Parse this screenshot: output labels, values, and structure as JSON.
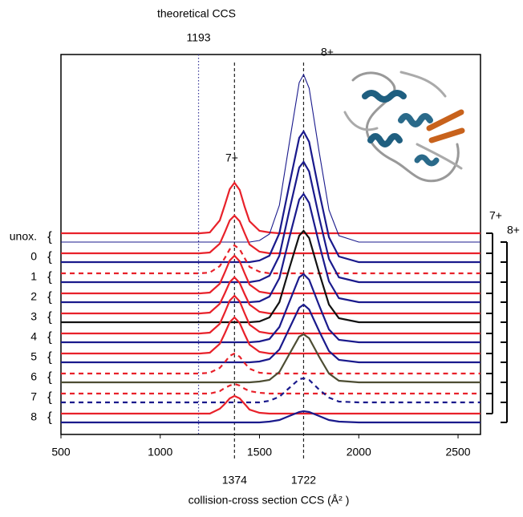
{
  "chart_data": {
    "type": "ridgeline",
    "theoretical_label": "theoretical CCS",
    "x_label": "collision-cross section CCS (Å² )",
    "peak_labels": [
      "7+",
      "8+"
    ],
    "bracket_labels": [
      "7+",
      "8+"
    ],
    "xlim": [
      500,
      2613
    ],
    "xticks": [
      500,
      1000,
      1500,
      2000,
      2500
    ],
    "reference_lines": [
      {
        "value": 1193,
        "label": "1193",
        "color": "#3a3a9a",
        "style": "dotted"
      },
      {
        "value": 1374,
        "label": "1374",
        "color": "#222222",
        "style": "dashed"
      },
      {
        "value": 1722,
        "label": "1722",
        "color": "#222222",
        "style": "dashed"
      }
    ],
    "x": [
      500,
      1200,
      1250,
      1300,
      1325,
      1350,
      1374,
      1400,
      1425,
      1450,
      1500,
      1550,
      1600,
      1650,
      1700,
      1722,
      1750,
      1800,
      1850,
      1900,
      2000,
      2613
    ],
    "rows": [
      {
        "label": "unox.",
        "series": [
          {
            "color": "#e8212a",
            "dashed": false,
            "width": 2,
            "values": [
              0,
              0,
              0.01,
              0.16,
              0.35,
              0.55,
              0.63,
              0.54,
              0.33,
              0.15,
              0.03,
              0.01,
              0,
              0,
              0,
              0,
              0,
              0,
              0,
              0,
              0,
              0
            ]
          },
          {
            "color": "#1a1a8c",
            "dashed": false,
            "width": 1,
            "values": [
              0,
              0,
              0,
              0,
              0,
              0,
              0,
              0,
              0,
              0,
              0.02,
              0.1,
              0.46,
              1.23,
              1.99,
              2.09,
              1.92,
              1.13,
              0.4,
              0.08,
              0,
              0
            ]
          }
        ]
      },
      {
        "label": "0",
        "series": [
          {
            "color": "#e8212a",
            "dashed": false,
            "width": 2,
            "values": [
              0,
              0,
              0.01,
              0.12,
              0.26,
              0.41,
              0.47,
              0.4,
              0.25,
              0.11,
              0.02,
              0,
              0,
              0,
              0,
              0,
              0,
              0,
              0,
              0,
              0,
              0
            ]
          },
          {
            "color": "#1a1a8c",
            "dashed": false,
            "width": 2,
            "values": [
              0,
              0,
              0,
              0,
              0,
              0,
              0,
              0,
              0,
              0,
              0.02,
              0.08,
              0.36,
              0.96,
              1.55,
              1.63,
              1.5,
              0.88,
              0.31,
              0.07,
              0,
              0
            ]
          }
        ]
      },
      {
        "label": "1",
        "series": [
          {
            "color": "#e8212a",
            "dashed": true,
            "width": 2,
            "values": [
              0,
              0,
              0.01,
              0.09,
              0.19,
              0.3,
              0.35,
              0.3,
              0.19,
              0.08,
              0.02,
              0,
              0,
              0,
              0,
              0,
              0,
              0,
              0,
              0,
              0,
              0
            ]
          },
          {
            "color": "#1a1a8c",
            "dashed": false,
            "width": 2,
            "values": [
              0,
              0,
              0,
              0,
              0,
              0,
              0,
              0,
              0,
              0,
              0.02,
              0.08,
              0.33,
              0.89,
              1.43,
              1.5,
              1.38,
              0.81,
              0.29,
              0.06,
              0,
              0
            ]
          }
        ]
      },
      {
        "label": "2",
        "series": [
          {
            "color": "#e8212a",
            "dashed": false,
            "width": 2,
            "values": [
              0,
              0,
              0.01,
              0.12,
              0.26,
              0.41,
              0.47,
              0.4,
              0.25,
              0.11,
              0.02,
              0,
              0,
              0,
              0,
              0,
              0,
              0,
              0,
              0,
              0,
              0
            ]
          },
          {
            "color": "#1a1a8c",
            "dashed": false,
            "width": 2,
            "values": [
              0,
              0,
              0,
              0,
              0,
              0,
              0,
              0,
              0,
              0,
              0.01,
              0.07,
              0.3,
              0.8,
              1.28,
              1.35,
              1.24,
              0.73,
              0.26,
              0.05,
              0,
              0
            ]
          }
        ]
      },
      {
        "label": "3",
        "series": [
          {
            "color": "#e8212a",
            "dashed": false,
            "width": 2,
            "values": [
              0,
              0,
              0.01,
              0.12,
              0.25,
              0.39,
              0.45,
              0.38,
              0.24,
              0.11,
              0.02,
              0,
              0,
              0,
              0,
              0,
              0,
              0,
              0,
              0,
              0,
              0
            ]
          },
          {
            "color": "#111111",
            "dashed": false,
            "width": 2,
            "values": [
              0,
              0,
              0,
              0,
              0,
              0,
              0,
              0,
              0,
              0,
              0.01,
              0.06,
              0.25,
              0.67,
              1.08,
              1.14,
              1.05,
              0.62,
              0.22,
              0.05,
              0,
              0
            ]
          }
        ]
      },
      {
        "label": "4",
        "series": [
          {
            "color": "#e8212a",
            "dashed": false,
            "width": 2,
            "values": [
              0,
              0,
              0.01,
              0.12,
              0.26,
              0.41,
              0.47,
              0.4,
              0.25,
              0.11,
              0.02,
              0,
              0,
              0,
              0,
              0,
              0,
              0,
              0,
              0,
              0,
              0
            ]
          },
          {
            "color": "#1a1a8c",
            "dashed": false,
            "width": 2,
            "values": [
              0,
              0,
              0,
              0,
              0,
              0,
              0,
              0,
              0,
              0,
              0.01,
              0.04,
              0.19,
              0.5,
              0.81,
              0.85,
              0.78,
              0.46,
              0.16,
              0.03,
              0,
              0
            ]
          }
        ]
      },
      {
        "label": "5",
        "series": [
          {
            "color": "#e8212a",
            "dashed": false,
            "width": 2,
            "values": [
              0,
              0,
              0.01,
              0.12,
              0.25,
              0.39,
              0.45,
              0.38,
              0.24,
              0.11,
              0.02,
              0,
              0,
              0,
              0,
              0,
              0,
              0,
              0,
              0,
              0,
              0
            ]
          },
          {
            "color": "#1a1a8c",
            "dashed": false,
            "width": 2,
            "values": [
              0,
              0,
              0,
              0,
              0,
              0,
              0,
              0,
              0,
              0,
              0.01,
              0.04,
              0.16,
              0.42,
              0.68,
              0.72,
              0.66,
              0.39,
              0.14,
              0.03,
              0,
              0
            ]
          }
        ]
      },
      {
        "label": "6",
        "series": [
          {
            "color": "#e8212a",
            "dashed": true,
            "width": 2,
            "values": [
              0,
              0,
              0.01,
              0.07,
              0.14,
              0.22,
              0.25,
              0.21,
              0.13,
              0.06,
              0.01,
              0,
              0,
              0,
              0,
              0,
              0,
              0,
              0,
              0,
              0,
              0
            ]
          },
          {
            "color": "#4d4d33",
            "dashed": false,
            "width": 2,
            "values": [
              0,
              0,
              0,
              0,
              0,
              0,
              0,
              0,
              0,
              0,
              0.01,
              0.03,
              0.13,
              0.35,
              0.57,
              0.6,
              0.55,
              0.32,
              0.11,
              0.02,
              0,
              0
            ]
          }
        ]
      },
      {
        "label": "7",
        "series": [
          {
            "color": "#e8212a",
            "dashed": true,
            "width": 2,
            "values": [
              0,
              0,
              0,
              0.03,
              0.07,
              0.1,
              0.12,
              0.1,
              0.06,
              0.03,
              0.01,
              0,
              0,
              0,
              0,
              0,
              0,
              0,
              0,
              0,
              0,
              0
            ]
          },
          {
            "color": "#1a1a8c",
            "dashed": true,
            "width": 2,
            "values": [
              0,
              0,
              0,
              0,
              0,
              0,
              0,
              0,
              0,
              0,
              0,
              0.02,
              0.07,
              0.18,
              0.29,
              0.3,
              0.28,
              0.16,
              0.06,
              0.01,
              0,
              0
            ]
          }
        ]
      },
      {
        "label": "8",
        "series": [
          {
            "color": "#e8212a",
            "dashed": false,
            "width": 2,
            "values": [
              0,
              0,
              0,
              0.06,
              0.12,
              0.19,
              0.22,
              0.19,
              0.12,
              0.05,
              0.01,
              0,
              0,
              0,
              0,
              0,
              0,
              0,
              0,
              0,
              0,
              0
            ]
          },
          {
            "color": "#1a1a8c",
            "dashed": false,
            "width": 2,
            "values": [
              0,
              0,
              0,
              0,
              0,
              0,
              0,
              0,
              0,
              0,
              0,
              0.01,
              0.03,
              0.08,
              0.13,
              0.14,
              0.13,
              0.08,
              0.03,
              0.01,
              0,
              0
            ]
          }
        ]
      }
    ]
  }
}
